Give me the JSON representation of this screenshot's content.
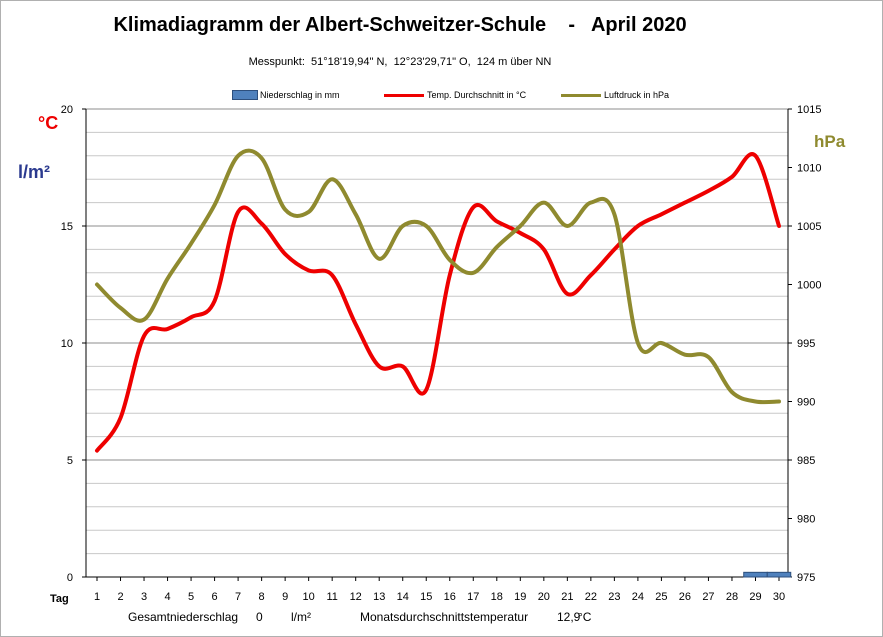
{
  "chart_data": {
    "type": "line",
    "title": "Klimadiagramm der Albert-Schweitzer-Schule    -   April 2020",
    "subtitle": "Messpunkt:  51°18'19,94\" N,  12°23'29,71\" O,  124 m über NN",
    "left_units": [
      "°C",
      "l/m²"
    ],
    "right_unit": "hPa",
    "xlabel": "Tag",
    "x": [
      1,
      2,
      3,
      4,
      5,
      6,
      7,
      8,
      9,
      10,
      11,
      12,
      13,
      14,
      15,
      16,
      17,
      18,
      19,
      20,
      21,
      22,
      23,
      24,
      25,
      26,
      27,
      28,
      29,
      30
    ],
    "left_axis": {
      "ylim": [
        0,
        20
      ],
      "ticks": [
        0,
        5,
        10,
        15,
        20
      ]
    },
    "right_axis": {
      "ylim": [
        975,
        1015
      ],
      "ticks": [
        975,
        980,
        985,
        990,
        995,
        1000,
        1005,
        1010,
        1015
      ]
    },
    "grid": "horizontal",
    "legend_position": "top",
    "series": [
      {
        "name": "Niederschlag in mm",
        "kind": "bar",
        "axis": "left",
        "color": "#4f81bd",
        "values": [
          0,
          0,
          0,
          0,
          0,
          0,
          0,
          0,
          0,
          0,
          0,
          0,
          0,
          0,
          0,
          0,
          0,
          0,
          0,
          0,
          0,
          0,
          0,
          0,
          0,
          0,
          0,
          0,
          0.2,
          0.2
        ]
      },
      {
        "name": "Temp. Durchschnitt in °C",
        "kind": "line",
        "axis": "left",
        "color": "#ee0000",
        "values": [
          5.4,
          6.8,
          10.3,
          10.6,
          11.1,
          11.8,
          15.6,
          15.1,
          13.8,
          13.1,
          12.9,
          10.8,
          9.0,
          9.0,
          8.0,
          12.9,
          15.8,
          15.2,
          14.7,
          14.0,
          12.1,
          12.9,
          14.0,
          15.0,
          15.5,
          16.0,
          16.5,
          17.1,
          18.0,
          15.0
        ]
      },
      {
        "name": "Luftdruck in hPa",
        "kind": "line",
        "axis": "right",
        "color": "#8f8a2f",
        "values": [
          1000,
          998,
          997,
          1000.5,
          1003.5,
          1006.8,
          1011,
          1010.8,
          1006.4,
          1006.2,
          1009,
          1006,
          1002.2,
          1005,
          1005,
          1002.1,
          1001,
          1003.2,
          1005,
          1007,
          1005,
          1007,
          1006,
          995,
          995,
          994,
          993.8,
          990.8,
          990,
          990
        ]
      }
    ]
  },
  "footer": {
    "total_precip_label": "Gesamtniederschlag",
    "total_precip_value": "0",
    "total_precip_unit": "l/m²",
    "avg_temp_label": "Monatsdurchschnittstemperatur",
    "avg_temp_value": "12,9",
    "avg_temp_unit": "°C"
  }
}
